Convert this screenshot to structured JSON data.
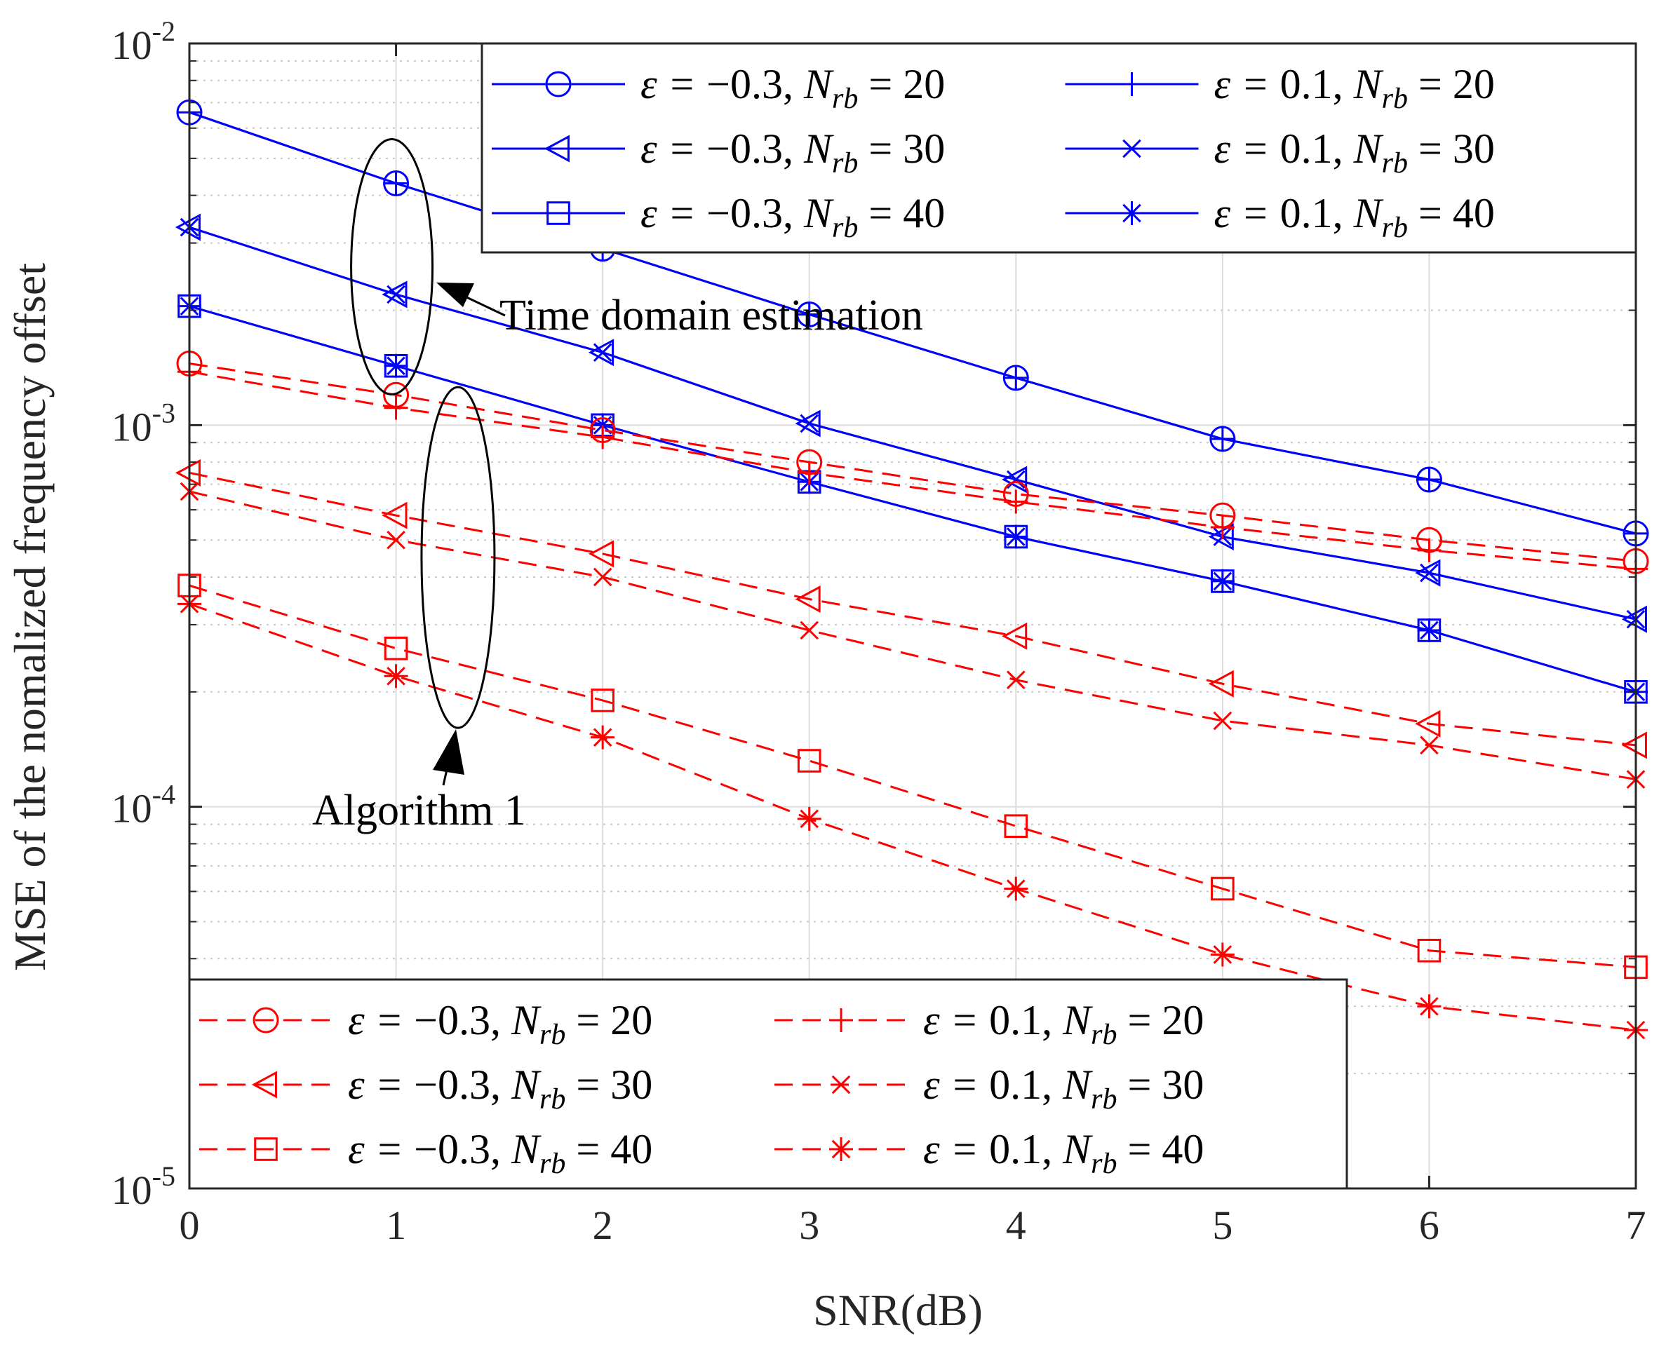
{
  "chart_data": {
    "type": "line",
    "xlabel": "SNR(dB)",
    "ylabel": "MSE of the nomalized frequency offset",
    "xlim": [
      0,
      7
    ],
    "ylim": [
      1e-05,
      0.01
    ],
    "yscale": "log",
    "grid": true,
    "x": [
      0,
      1,
      2,
      3,
      4,
      5,
      6,
      7
    ],
    "x_tick_labels": [
      "0",
      "1",
      "2",
      "3",
      "4",
      "5",
      "6",
      "7"
    ],
    "y_tick_labels": [
      "10-5",
      "10-4",
      "10-3",
      "10-2"
    ],
    "y_tick_values": [
      1e-05,
      0.0001,
      0.001,
      0.01
    ],
    "series": [
      {
        "name": "ε = −0.3, Nrb = 20",
        "method": "Time domain estimation",
        "color": "#0000ff",
        "dash": "solid",
        "marker": "circle",
        "values": [
          0.0066,
          0.0043,
          0.0029,
          0.00195,
          0.00133,
          0.00092,
          0.00072,
          0.00052
        ]
      },
      {
        "name": "ε = 0.1, Nrb = 20",
        "method": "Time domain estimation",
        "color": "#0000ff",
        "dash": "solid",
        "marker": "plus",
        "values": [
          0.0066,
          0.0043,
          0.0029,
          0.00195,
          0.00133,
          0.00092,
          0.00072,
          0.00052
        ]
      },
      {
        "name": "ε = −0.3, Nrb = 30",
        "method": "Time domain estimation",
        "color": "#0000ff",
        "dash": "solid",
        "marker": "triangle-left",
        "values": [
          0.0033,
          0.0022,
          0.00155,
          0.00101,
          0.00072,
          0.00051,
          0.00041,
          0.00031
        ]
      },
      {
        "name": "ε = 0.1, Nrb = 30",
        "method": "Time domain estimation",
        "color": "#0000ff",
        "dash": "solid",
        "marker": "x",
        "values": [
          0.0033,
          0.0022,
          0.00155,
          0.00101,
          0.00072,
          0.00051,
          0.00041,
          0.00031
        ]
      },
      {
        "name": "ε = −0.3, Nrb = 40",
        "method": "Time domain estimation",
        "color": "#0000ff",
        "dash": "solid",
        "marker": "square",
        "values": [
          0.00205,
          0.00143,
          0.001,
          0.00071,
          0.00051,
          0.00039,
          0.00029,
          0.0002
        ]
      },
      {
        "name": "ε = 0.1, Nrb = 40",
        "method": "Time domain estimation",
        "color": "#0000ff",
        "dash": "solid",
        "marker": "asterisk",
        "values": [
          0.00205,
          0.00143,
          0.001,
          0.00071,
          0.00051,
          0.00039,
          0.00029,
          0.0002
        ]
      },
      {
        "name": "ε = −0.3, Nrb = 20",
        "method": "Algorithm 1",
        "color": "#ff0000",
        "dash": "dashed",
        "marker": "circle",
        "values": [
          0.00145,
          0.0012,
          0.00097,
          0.0008,
          0.00066,
          0.00058,
          0.0005,
          0.00044
        ]
      },
      {
        "name": "ε = 0.1, Nrb = 20",
        "method": "Algorithm 1",
        "color": "#ff0000",
        "dash": "dashed",
        "marker": "plus",
        "values": [
          0.00138,
          0.00111,
          0.00093,
          0.00075,
          0.00063,
          0.00054,
          0.00047,
          0.00042
        ]
      },
      {
        "name": "ε = −0.3, Nrb = 30",
        "method": "Algorithm 1",
        "color": "#ff0000",
        "dash": "dashed",
        "marker": "triangle-left",
        "values": [
          0.00075,
          0.00058,
          0.00046,
          0.00035,
          0.00028,
          0.00021,
          0.000165,
          0.000145
        ]
      },
      {
        "name": "ε = 0.1, Nrb = 30",
        "method": "Algorithm 1",
        "color": "#ff0000",
        "dash": "dashed",
        "marker": "x",
        "values": [
          0.00067,
          0.0005,
          0.0004,
          0.00029,
          0.000215,
          0.000168,
          0.000145,
          0.000118
        ]
      },
      {
        "name": "ε = −0.3, Nrb = 40",
        "method": "Algorithm 1",
        "color": "#ff0000",
        "dash": "dashed",
        "marker": "square",
        "values": [
          0.00038,
          0.00026,
          0.00019,
          0.000132,
          8.9e-05,
          6.1e-05,
          4.2e-05,
          3.8e-05
        ]
      },
      {
        "name": "ε = 0.1, Nrb = 40",
        "method": "Algorithm 1",
        "color": "#ff0000",
        "dash": "dashed",
        "marker": "asterisk",
        "values": [
          0.00034,
          0.00022,
          0.000152,
          9.3e-05,
          6.1e-05,
          4.1e-05,
          3e-05,
          2.6e-05
        ]
      }
    ],
    "annotations": [
      {
        "text": "Time domain estimation"
      },
      {
        "text": "Algorithm 1"
      }
    ],
    "legends": [
      {
        "placement": "top-right",
        "columns": 2,
        "entries": [
          {
            "series": 0,
            "eps": "−0.3",
            "nrb": "20"
          },
          {
            "series": 1,
            "eps": "0.1",
            "nrb": "20"
          },
          {
            "series": 2,
            "eps": "−0.3",
            "nrb": "30"
          },
          {
            "series": 3,
            "eps": "0.1",
            "nrb": "30"
          },
          {
            "series": 4,
            "eps": "−0.3",
            "nrb": "40"
          },
          {
            "series": 5,
            "eps": "0.1",
            "nrb": "40"
          }
        ]
      },
      {
        "placement": "bottom-left",
        "columns": 2,
        "entries": [
          {
            "series": 6,
            "eps": "−0.3",
            "nrb": "20"
          },
          {
            "series": 7,
            "eps": "0.1",
            "nrb": "20"
          },
          {
            "series": 8,
            "eps": "−0.3",
            "nrb": "30"
          },
          {
            "series": 9,
            "eps": "0.1",
            "nrb": "30"
          },
          {
            "series": 10,
            "eps": "−0.3",
            "nrb": "40"
          },
          {
            "series": 11,
            "eps": "0.1",
            "nrb": "40"
          }
        ]
      }
    ]
  }
}
